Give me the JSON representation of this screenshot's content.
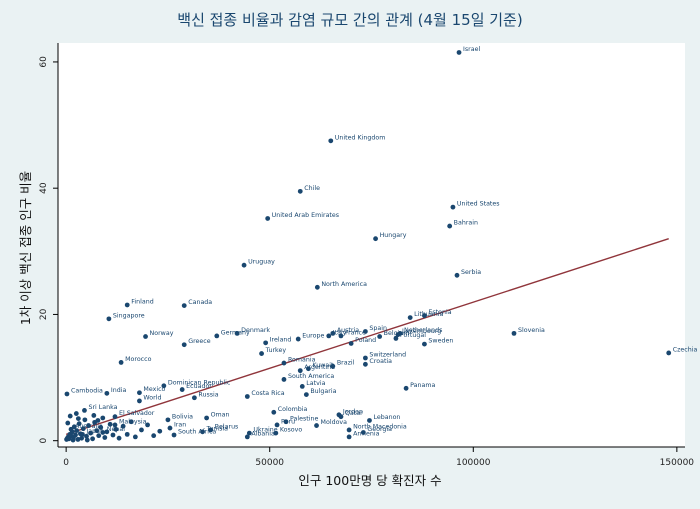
{
  "chart_data": {
    "type": "scatter",
    "title": "백신 접종 비율과 감염 규모 간의 관계 (4월 15일 기준)",
    "xlabel": "인구 100만명 당 확진자 수",
    "ylabel": "1차 이상 백신 접종 인구 비율",
    "xlim": [
      -2000,
      152000
    ],
    "ylim": [
      -1,
      63
    ],
    "xticks": [
      0,
      50000,
      100000,
      150000
    ],
    "xtick_labels": [
      "0",
      "50000",
      "100000",
      "150000"
    ],
    "yticks": [
      0,
      20,
      40,
      60
    ],
    "ytick_labels": [
      "0",
      "20",
      "40",
      "60"
    ],
    "grid": "none",
    "colors": {
      "background": "#eaf2f3",
      "plot_background": "#ffffff",
      "point": "#1a476f",
      "fit_line": "#90353b",
      "title": "#1a476f"
    },
    "fit_line": {
      "x": [
        0,
        148000
      ],
      "y": [
        1.0,
        32.0
      ]
    },
    "points": [
      {
        "label": "Israel",
        "x": 96500,
        "y": 61.5
      },
      {
        "label": "United Kingdom",
        "x": 65000,
        "y": 47.5
      },
      {
        "label": "Chile",
        "x": 57500,
        "y": 39.5
      },
      {
        "label": "United States",
        "x": 95000,
        "y": 37.0
      },
      {
        "label": "United Arab Emirates",
        "x": 49500,
        "y": 35.2
      },
      {
        "label": "Bahrain",
        "x": 94200,
        "y": 34.0
      },
      {
        "label": "Hungary",
        "x": 76000,
        "y": 32.0
      },
      {
        "label": "Uruguay",
        "x": 43700,
        "y": 27.8
      },
      {
        "label": "Serbia",
        "x": 96000,
        "y": 26.2
      },
      {
        "label": "North America",
        "x": 61700,
        "y": 24.3
      },
      {
        "label": "Finland",
        "x": 15000,
        "y": 21.5
      },
      {
        "label": "Canada",
        "x": 29000,
        "y": 21.4
      },
      {
        "label": "Singapore",
        "x": 10500,
        "y": 19.3
      },
      {
        "label": "Lithuania",
        "x": 84500,
        "y": 19.5
      },
      {
        "label": "Estonia",
        "x": 88000,
        "y": 19.8
      },
      {
        "label": "Slovenia",
        "x": 110000,
        "y": 17.0
      },
      {
        "label": "Czechia",
        "x": 148000,
        "y": 13.9
      },
      {
        "label": "Norway",
        "x": 19500,
        "y": 16.5
      },
      {
        "label": "Germany",
        "x": 37000,
        "y": 16.6
      },
      {
        "label": "Denmark",
        "x": 42000,
        "y": 17.0
      },
      {
        "label": "Greece",
        "x": 29000,
        "y": 15.2
      },
      {
        "label": "Ireland",
        "x": 49000,
        "y": 15.5
      },
      {
        "label": "Europe",
        "x": 57000,
        "y": 16.1
      },
      {
        "label": "Austria",
        "x": 65500,
        "y": 17.0
      },
      {
        "label": "Spain",
        "x": 73500,
        "y": 17.3
      },
      {
        "label": "Italy",
        "x": 64500,
        "y": 16.6
      },
      {
        "label": "France",
        "x": 67500,
        "y": 16.6
      },
      {
        "label": "Belgium",
        "x": 77000,
        "y": 16.5
      },
      {
        "label": "Netherlands",
        "x": 82000,
        "y": 17.0
      },
      {
        "label": "Luxembourg",
        "x": 81500,
        "y": 16.8
      },
      {
        "label": "Portugal",
        "x": 81000,
        "y": 16.2
      },
      {
        "label": "Poland",
        "x": 70000,
        "y": 15.4
      },
      {
        "label": "Sweden",
        "x": 88000,
        "y": 15.3
      },
      {
        "label": "Turkey",
        "x": 48000,
        "y": 13.8
      },
      {
        "label": "Switzerland",
        "x": 73500,
        "y": 13.1
      },
      {
        "label": "Croatia",
        "x": 73500,
        "y": 12.1
      },
      {
        "label": "Morocco",
        "x": 13500,
        "y": 12.4
      },
      {
        "label": "Romania",
        "x": 53500,
        "y": 12.3
      },
      {
        "label": "Brazil",
        "x": 65500,
        "y": 11.8
      },
      {
        "label": "Kuwait",
        "x": 59500,
        "y": 11.4
      },
      {
        "label": "Argentina",
        "x": 57500,
        "y": 11.1
      },
      {
        "label": "South America",
        "x": 53500,
        "y": 9.7
      },
      {
        "label": "Latvia",
        "x": 58000,
        "y": 8.6
      },
      {
        "label": "Panama",
        "x": 83500,
        "y": 8.3
      },
      {
        "label": "Cambodia",
        "x": 200,
        "y": 7.4
      },
      {
        "label": "India",
        "x": 10000,
        "y": 7.5
      },
      {
        "label": "Mexico",
        "x": 18000,
        "y": 7.6
      },
      {
        "label": "Dominican Republic",
        "x": 24000,
        "y": 8.7
      },
      {
        "label": "Costa Rica",
        "x": 44500,
        "y": 7.0
      },
      {
        "label": "Bulgaria",
        "x": 59000,
        "y": 7.3
      },
      {
        "label": "Ecuador",
        "x": 28500,
        "y": 8.1
      },
      {
        "label": "Russia",
        "x": 31500,
        "y": 6.8
      },
      {
        "label": "World",
        "x": 18000,
        "y": 6.3
      },
      {
        "label": "Colombia",
        "x": 51000,
        "y": 4.5
      },
      {
        "label": "Jordan",
        "x": 67000,
        "y": 4.1
      },
      {
        "label": "Qatar",
        "x": 67500,
        "y": 3.8
      },
      {
        "label": "Oman",
        "x": 34500,
        "y": 3.6
      },
      {
        "label": "Bolivia",
        "x": 25000,
        "y": 3.3
      },
      {
        "label": "Sri Lanka",
        "x": 4500,
        "y": 4.8
      },
      {
        "label": "El Salvador",
        "x": 12000,
        "y": 3.8
      },
      {
        "label": "Lebanon",
        "x": 74500,
        "y": 3.2
      },
      {
        "label": "Palestine",
        "x": 54000,
        "y": 3.0
      },
      {
        "label": "Peru",
        "x": 51800,
        "y": 2.5
      },
      {
        "label": "Moldova",
        "x": 61500,
        "y": 2.4
      },
      {
        "label": "North Macedonia",
        "x": 69500,
        "y": 1.7
      },
      {
        "label": "Ukraine",
        "x": 45000,
        "y": 1.2
      },
      {
        "label": "Kosovo",
        "x": 51500,
        "y": 1.2
      },
      {
        "label": "Georgia",
        "x": 73000,
        "y": 1.3
      },
      {
        "label": "Armenia",
        "x": 69500,
        "y": 0.6
      },
      {
        "label": "Albania",
        "x": 44500,
        "y": 0.6
      },
      {
        "label": "Belarus",
        "x": 35500,
        "y": 1.7
      },
      {
        "label": "Tunisia",
        "x": 33500,
        "y": 1.4
      },
      {
        "label": "South Africa",
        "x": 26500,
        "y": 0.9
      },
      {
        "label": "Malaysia",
        "x": 12000,
        "y": 2.5
      },
      {
        "label": "Iran",
        "x": 25500,
        "y": 2.0
      },
      {
        "label": "Japan",
        "x": 4000,
        "y": 1.0
      },
      {
        "label": "Australia",
        "x": 1200,
        "y": 1.8
      },
      {
        "label": "Nepal",
        "x": 9000,
        "y": 1.3
      }
    ],
    "unlabeled_points": [
      {
        "x": 100,
        "y": 0.2
      },
      {
        "x": 300,
        "y": 0.4
      },
      {
        "x": 500,
        "y": 0.6
      },
      {
        "x": 700,
        "y": 0.3
      },
      {
        "x": 900,
        "y": 1.0
      },
      {
        "x": 1200,
        "y": 0.8
      },
      {
        "x": 1500,
        "y": 1.4
      },
      {
        "x": 1800,
        "y": 0.5
      },
      {
        "x": 2000,
        "y": 2.2
      },
      {
        "x": 2300,
        "y": 0.9
      },
      {
        "x": 2600,
        "y": 1.6
      },
      {
        "x": 2900,
        "y": 0.2
      },
      {
        "x": 3200,
        "y": 2.7
      },
      {
        "x": 3500,
        "y": 1.1
      },
      {
        "x": 3800,
        "y": 0.4
      },
      {
        "x": 4200,
        "y": 1.9
      },
      {
        "x": 4600,
        "y": 3.3
      },
      {
        "x": 5000,
        "y": 0.7
      },
      {
        "x": 5500,
        "y": 2.4
      },
      {
        "x": 6000,
        "y": 1.2
      },
      {
        "x": 6500,
        "y": 0.3
      },
      {
        "x": 7000,
        "y": 2.9
      },
      {
        "x": 7500,
        "y": 1.6
      },
      {
        "x": 8000,
        "y": 0.8
      },
      {
        "x": 8500,
        "y": 2.1
      },
      {
        "x": 9000,
        "y": 3.6
      },
      {
        "x": 9500,
        "y": 0.5
      },
      {
        "x": 10000,
        "y": 1.4
      },
      {
        "x": 10800,
        "y": 2.6
      },
      {
        "x": 11500,
        "y": 0.9
      },
      {
        "x": 12200,
        "y": 1.8
      },
      {
        "x": 13000,
        "y": 0.4
      },
      {
        "x": 14000,
        "y": 2.3
      },
      {
        "x": 15000,
        "y": 1.0
      },
      {
        "x": 16000,
        "y": 3.0
      },
      {
        "x": 17000,
        "y": 0.6
      },
      {
        "x": 18500,
        "y": 1.7
      },
      {
        "x": 20000,
        "y": 2.5
      },
      {
        "x": 21500,
        "y": 0.8
      },
      {
        "x": 23000,
        "y": 1.5
      },
      {
        "x": 1000,
        "y": 3.9
      },
      {
        "x": 2500,
        "y": 4.3
      },
      {
        "x": 6800,
        "y": 4.0
      },
      {
        "x": 400,
        "y": 2.8
      },
      {
        "x": 1700,
        "y": 0.1
      },
      {
        "x": 3000,
        "y": 3.5
      },
      {
        "x": 5200,
        "y": 0.1
      },
      {
        "x": 7800,
        "y": 3.2
      }
    ]
  }
}
